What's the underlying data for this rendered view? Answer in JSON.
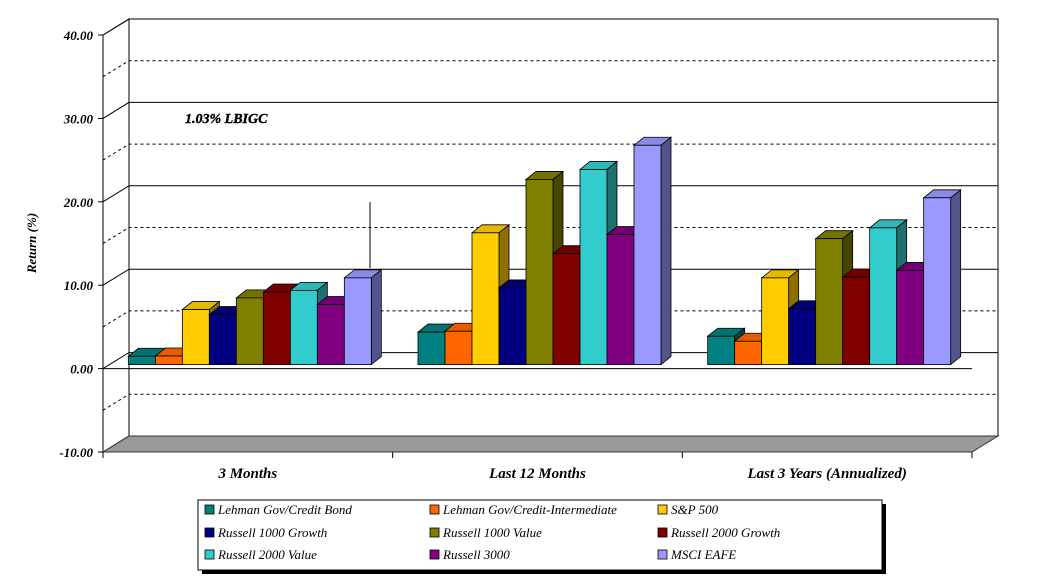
{
  "chart_data": {
    "type": "bar",
    "title": "",
    "xlabel": "",
    "ylabel": "Return (%)",
    "ylim": [
      -10,
      40
    ],
    "yticks": [
      "-10.00",
      "0.00",
      "10.00",
      "20.00",
      "30.00",
      "40.00"
    ],
    "grid": true,
    "legend_position": "bottom",
    "categories": [
      "3 Months",
      "Last 12 Months",
      "Last 3 Years (Annualized)"
    ],
    "annotation": "1.03% LBIGC",
    "series": [
      {
        "name": "Lehman Gov/Credit Bond",
        "color": "#008080",
        "values": [
          1.0,
          3.9,
          3.4
        ]
      },
      {
        "name": "Lehman Gov/Credit-Intermediate",
        "color": "#ff6600",
        "values": [
          1.03,
          4.0,
          2.8
        ]
      },
      {
        "name": "S&P 500",
        "color": "#ffcc00",
        "values": [
          6.6,
          15.8,
          10.4
        ]
      },
      {
        "name": "Russell 1000 Growth",
        "color": "#000080",
        "values": [
          6.0,
          9.2,
          6.7
        ]
      },
      {
        "name": "Russell 1000 Value",
        "color": "#808000",
        "values": [
          8.0,
          22.2,
          15.1
        ]
      },
      {
        "name": "Russell 2000 Growth",
        "color": "#800000",
        "values": [
          8.7,
          13.3,
          10.5
        ]
      },
      {
        "name": "Russell 2000 Value",
        "color": "#33cccc",
        "values": [
          8.9,
          23.4,
          16.4
        ]
      },
      {
        "name": "Russell 3000",
        "color": "#800080",
        "values": [
          7.2,
          15.6,
          11.3
        ]
      },
      {
        "name": "MSCI EAFE",
        "color": "#9999ff",
        "values": [
          10.4,
          26.3,
          20.0
        ]
      }
    ]
  }
}
